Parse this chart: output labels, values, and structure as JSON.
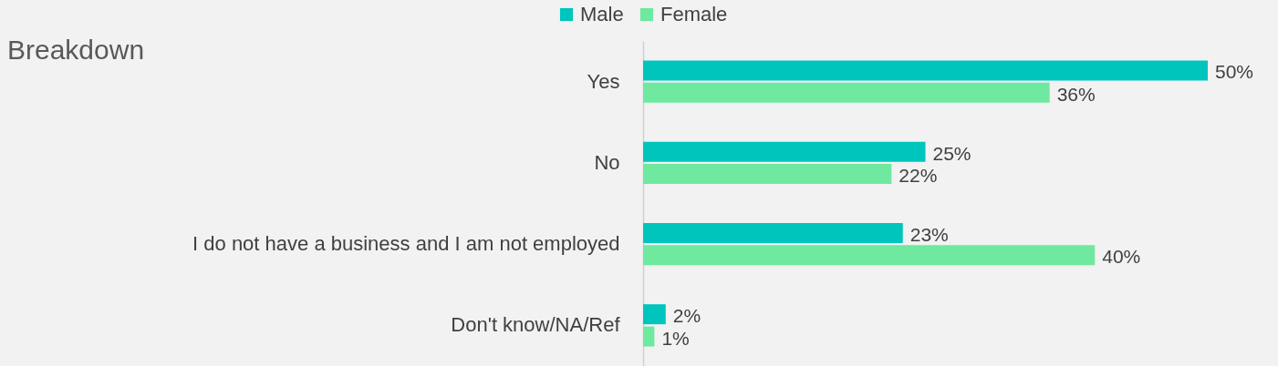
{
  "chart_data": {
    "type": "bar",
    "orientation": "horizontal",
    "title": "Breakdown",
    "legend": "top",
    "categories": [
      "Yes",
      "No",
      "I do not have a business and I am not employed",
      "Don't know/NA/Ref"
    ],
    "series": [
      {
        "name": "Male",
        "color": "#00c5bc",
        "values": [
          50,
          25,
          23,
          2
        ],
        "value_labels": [
          "50%",
          "25%",
          "23%",
          "2%"
        ]
      },
      {
        "name": "Female",
        "color": "#6fe8a0",
        "values": [
          36,
          22,
          40,
          1
        ],
        "value_labels": [
          "36%",
          "22%",
          "40%",
          "1%"
        ]
      }
    ]
  }
}
